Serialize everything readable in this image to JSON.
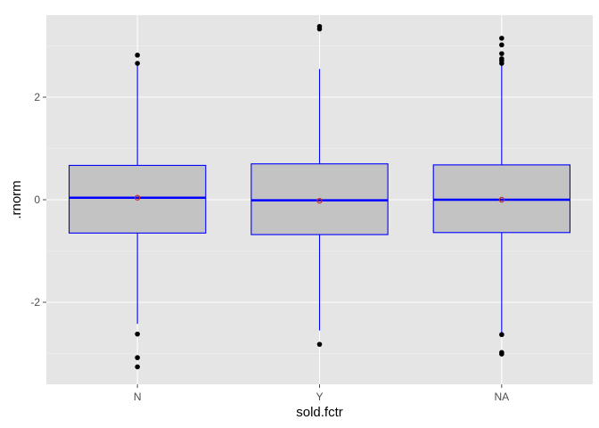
{
  "chart_data": {
    "type": "boxplot",
    "xlabel": "sold.fctr",
    "ylabel": ".rnorm",
    "ylim": [
      -3.6,
      3.6
    ],
    "y_ticks": [
      -2,
      0,
      2
    ],
    "y_tick_labels": [
      "-2",
      "0",
      "2"
    ],
    "categories": [
      "N",
      "Y",
      "NA"
    ],
    "grid": true,
    "colors": {
      "panel_bg": "#e5e5e5",
      "grid_major": "#ffffff",
      "grid_minor": "#f2f2f2",
      "box_fill": "#c3c3c3",
      "box_line": "#0000ff",
      "outlier": "#000000",
      "mean_marker": "#c03030"
    },
    "boxes": [
      {
        "category": "N",
        "q1": -0.65,
        "median": 0.04,
        "q3": 0.67,
        "whisker_low": -2.42,
        "whisker_high": 2.7,
        "mean": 0.04,
        "outliers": [
          -2.62,
          -3.08,
          -3.26,
          2.66,
          2.82
        ]
      },
      {
        "category": "Y",
        "q1": -0.68,
        "median": -0.01,
        "q3": 0.7,
        "whisker_low": -2.55,
        "whisker_high": 2.55,
        "mean": -0.02,
        "outliers": [
          -2.82,
          3.33,
          3.38
        ]
      },
      {
        "category": "NA",
        "q1": -0.64,
        "median": 0.0,
        "q3": 0.68,
        "whisker_low": -2.62,
        "whisker_high": 2.62,
        "mean": 0.0,
        "outliers": [
          -2.63,
          -2.98,
          -3.01,
          2.66,
          2.71,
          2.75,
          2.85,
          3.02,
          3.15
        ]
      }
    ]
  }
}
